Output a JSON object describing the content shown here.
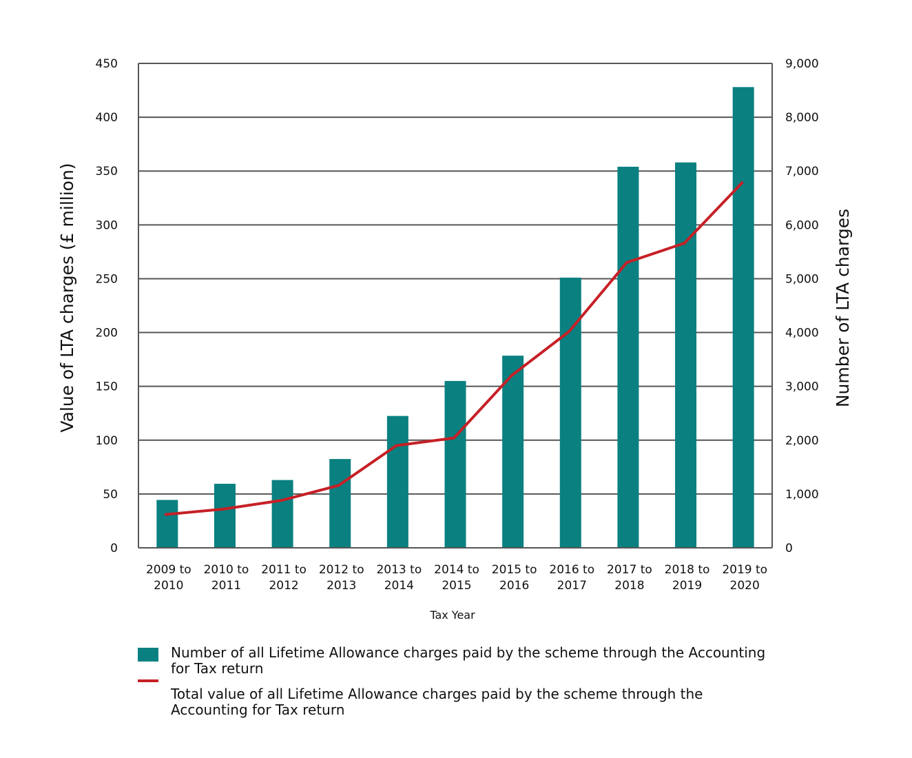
{
  "chart_data": {
    "type": "bar",
    "categories": [
      "2009 to 2010",
      "2010 to 2011",
      "2011 to 2012",
      "2012 to 2013",
      "2013 to 2014",
      "2014 to 2015",
      "2015 to 2016",
      "2016 to 2017",
      "2017 to 2018",
      "2018 to 2019",
      "2019 to 2020"
    ],
    "category_lines": [
      [
        "2009 to",
        "2010"
      ],
      [
        "2010 to",
        "2011"
      ],
      [
        "2011 to",
        "2012"
      ],
      [
        "2012 to",
        "2013"
      ],
      [
        "2013 to",
        "2014"
      ],
      [
        "2014 to",
        "2015"
      ],
      [
        "2015 to",
        "2016"
      ],
      [
        "2016 to",
        "2017"
      ],
      [
        "2017 to",
        "2018"
      ],
      [
        "2018 to",
        "2019"
      ],
      [
        "2019 to",
        "2020"
      ]
    ],
    "series": [
      {
        "name": "Number of all Lifetime Allowance charges paid by the scheme through the Accounting for Tax return",
        "type": "bar",
        "axis": "right",
        "color": "#0a8080",
        "values": [
          890,
          1190,
          1260,
          1650,
          2450,
          3100,
          3570,
          5020,
          7080,
          7160,
          8560
        ]
      },
      {
        "name": "Total value of all Lifetime Allowance charges paid by the scheme through the Accounting for Tax return",
        "type": "line",
        "axis": "left",
        "color": "#c62026",
        "values": [
          31,
          36,
          44,
          58,
          95,
          102,
          160,
          201,
          265,
          283,
          339
        ]
      }
    ],
    "xlabel": "Tax Year",
    "ylabel_left": "Value of LTA charges (£ million)",
    "ylabel_right": "Number of LTA charges",
    "ylim_left": [
      0,
      450
    ],
    "ylim_right": [
      0,
      9000
    ],
    "yticks_left": [
      "0",
      "50",
      "100",
      "150",
      "200",
      "250",
      "300",
      "350",
      "400",
      "450"
    ],
    "yticks_right": [
      "0",
      "1,000",
      "2,000",
      "3,000",
      "4,000",
      "5,000",
      "6,000",
      "7,000",
      "8,000",
      "9,000"
    ],
    "grid": true,
    "legend_position": "bottom"
  },
  "legend": {
    "bar_line1": "Number of all Lifetime Allowance charges paid by the scheme through the Accounting",
    "bar_line2": "for Tax return",
    "line_line1": "Total value of all Lifetime Allowance charges paid by the scheme through the",
    "line_line2": "Accounting for Tax return"
  }
}
